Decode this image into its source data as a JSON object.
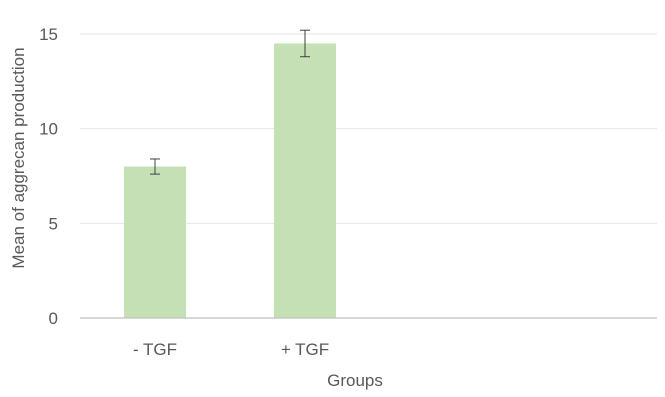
{
  "chart_data": {
    "type": "bar",
    "categories": [
      "- TGF",
      "+ TGF"
    ],
    "values": [
      8.0,
      14.5
    ],
    "error": [
      0.4,
      0.7
    ],
    "xlabel": "Groups",
    "ylabel": "Mean of  aggrecan production",
    "ylim": [
      0,
      15
    ],
    "yticks": [
      0,
      5,
      10,
      15
    ],
    "grid": true,
    "legend": "none",
    "colors": {
      "bar": "#c5e0b4",
      "axis": "#bfbfbf",
      "grid": "#e6e6e6",
      "error": "#404040",
      "text": "#595959"
    }
  }
}
